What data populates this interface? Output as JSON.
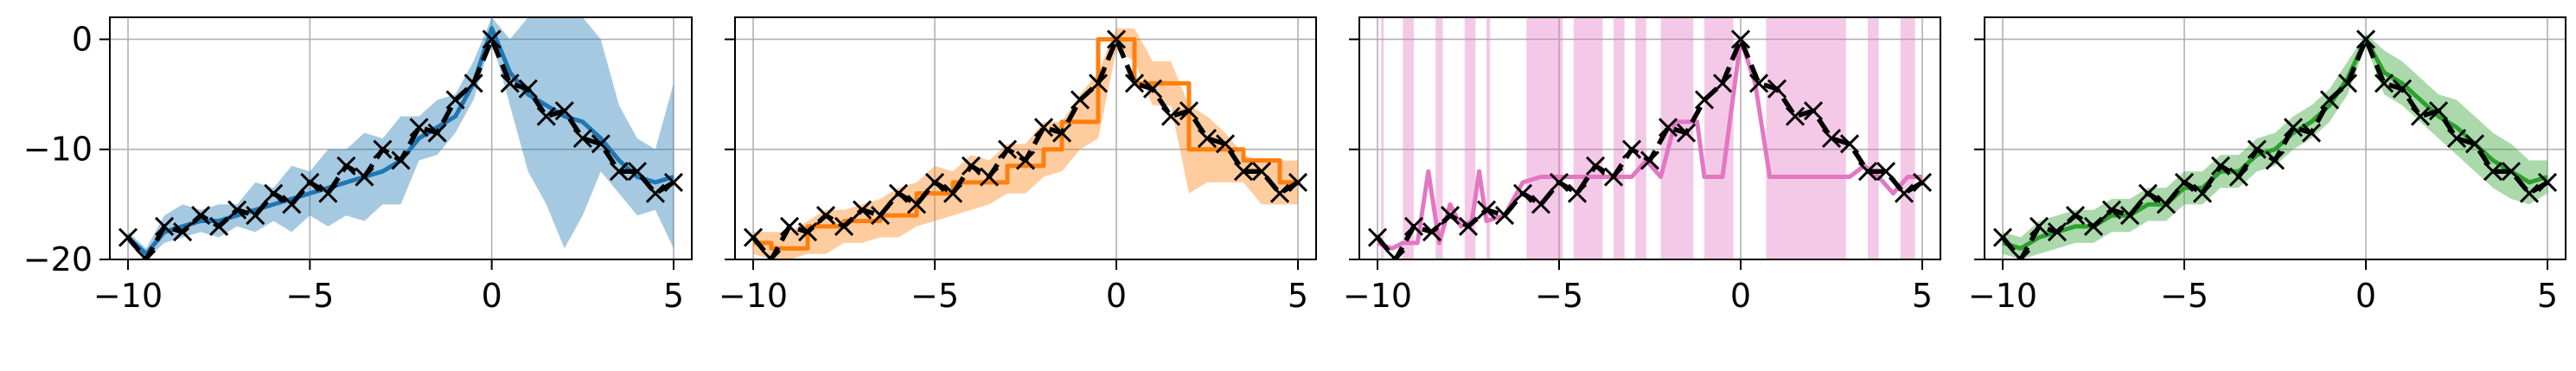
{
  "chart_data": [
    {
      "type": "line",
      "panel": 1,
      "xlim": [
        -10.5,
        5.5
      ],
      "ylim": [
        -20,
        2
      ],
      "xticks": [
        -10,
        -5,
        0,
        5
      ],
      "xtick_labels": [
        "−10",
        "−5",
        "0",
        "5"
      ],
      "yticks": [
        0,
        -10,
        -20
      ],
      "ytick_labels": [
        "0",
        "−10",
        "−20"
      ],
      "grid": true,
      "color": "#1f77b4",
      "band_color": "#1f77b4",
      "observations": {
        "x": [
          -10,
          -9.5,
          -9,
          -8.5,
          -8,
          -7.5,
          -7,
          -6.5,
          -6,
          -5.5,
          -5,
          -4.5,
          -4,
          -3.5,
          -3,
          -2.5,
          -2,
          -1.5,
          -1,
          -0.5,
          0,
          0.5,
          1,
          1.5,
          2,
          2.5,
          3,
          3.5,
          4,
          4.5,
          5
        ]
      },
      "truth": {
        "x": [
          -10,
          -9.5,
          -9,
          -8.5,
          -8,
          -7.5,
          -7,
          -6.5,
          -6,
          -5.5,
          -5,
          -4.5,
          -4,
          -3.5,
          -3,
          -2.5,
          -2,
          -1.5,
          -1,
          -0.5,
          0,
          0.5,
          1,
          1.5,
          2,
          2.5,
          3,
          3.5,
          4,
          4.5,
          5
        ],
        "y": [
          -18,
          -20,
          -17,
          -17.5,
          -16,
          -17,
          -15.5,
          -16,
          -14,
          -15,
          -13,
          -14,
          -11.5,
          -12.5,
          -10,
          -11,
          -8,
          -8.5,
          -5.5,
          -4,
          0,
          -4,
          -4.5,
          -7,
          -6.5,
          -9,
          -9.5,
          -12,
          -12,
          -14,
          -13
        ]
      },
      "mean": {
        "x": [
          -10,
          -9.5,
          -9,
          -8.5,
          -8,
          -7.5,
          -7,
          -6.5,
          -6,
          -5.5,
          -5,
          -4.5,
          -4,
          -3.5,
          -3,
          -2.5,
          -2,
          -1.5,
          -1,
          -0.5,
          0,
          0.5,
          1,
          1.5,
          2,
          2.5,
          3,
          3.5,
          4,
          4.5,
          5
        ],
        "y": [
          -18,
          -19.5,
          -17.5,
          -17,
          -16.5,
          -16.5,
          -16,
          -15.5,
          -15,
          -14.5,
          -14,
          -13.5,
          -13,
          -12.5,
          -12,
          -11,
          -9,
          -8,
          -7,
          -4,
          1,
          -3,
          -5,
          -6,
          -7,
          -7.5,
          -9,
          -11,
          -12.5,
          -13,
          -12.5
        ]
      },
      "band": {
        "x": [
          -10,
          -9.5,
          -9,
          -8.5,
          -8,
          -7.5,
          -7,
          -6.5,
          -6,
          -5.5,
          -5,
          -4.5,
          -4,
          -3.5,
          -3,
          -2.5,
          -2,
          -1.5,
          -1,
          -0.5,
          0,
          0.5,
          1,
          1.5,
          2,
          2.5,
          3,
          3.5,
          4,
          4.5,
          5
        ],
        "lower": [
          -18.5,
          -20,
          -18.5,
          -18,
          -17.5,
          -18,
          -17,
          -17.5,
          -16.5,
          -17.5,
          -16,
          -17,
          -16,
          -16.5,
          -15,
          -15,
          -11,
          -10.5,
          -8.5,
          -5.5,
          0,
          -6,
          -12,
          -15,
          -19,
          -16,
          -12,
          -14,
          -16,
          -15.5,
          -19
        ],
        "upper": [
          -17.5,
          -19,
          -16,
          -15,
          -15.5,
          -15,
          -15,
          -13,
          -13.5,
          -11.5,
          -12,
          -10,
          -10,
          -8.5,
          -9,
          -7,
          -7,
          -5.5,
          -5,
          -2,
          2,
          0,
          2,
          2,
          4,
          2,
          0,
          -6,
          -9,
          -10,
          -4
        ]
      }
    },
    {
      "type": "line",
      "panel": 2,
      "xlim": [
        -10.5,
        5.5
      ],
      "ylim": [
        -20,
        2
      ],
      "xticks": [
        -10,
        -5,
        0,
        5
      ],
      "xtick_labels": [
        "−10",
        "−5",
        "0",
        "5"
      ],
      "yticks": [
        0,
        -10,
        -20
      ],
      "grid": true,
      "color": "#ff7f0e",
      "band_color": "#ff7f0e",
      "observations": {
        "x": [
          -10,
          -9.5,
          -9,
          -8.5,
          -8,
          -7.5,
          -7,
          -6.5,
          -6,
          -5.5,
          -5,
          -4.5,
          -4,
          -3.5,
          -3,
          -2.5,
          -2,
          -1.5,
          -1,
          -0.5,
          0,
          0.5,
          1,
          1.5,
          2,
          2.5,
          3,
          3.5,
          4,
          4.5,
          5
        ]
      },
      "truth": {
        "x": [
          -10,
          -9.5,
          -9,
          -8.5,
          -8,
          -7.5,
          -7,
          -6.5,
          -6,
          -5.5,
          -5,
          -4.5,
          -4,
          -3.5,
          -3,
          -2.5,
          -2,
          -1.5,
          -1,
          -0.5,
          0,
          0.5,
          1,
          1.5,
          2,
          2.5,
          3,
          3.5,
          4,
          4.5,
          5
        ],
        "y": [
          -18,
          -20,
          -17,
          -17.5,
          -16,
          -17,
          -15.5,
          -16,
          -14,
          -15,
          -13,
          -14,
          -11.5,
          -12.5,
          -10,
          -11,
          -8,
          -8.5,
          -5.5,
          -4,
          0,
          -4,
          -4.5,
          -7,
          -6.5,
          -9,
          -9.5,
          -12,
          -12,
          -14,
          -13
        ]
      },
      "mean": {
        "x": [
          -10,
          -9.5,
          -9.5,
          -8.5,
          -8.5,
          -7.5,
          -7.5,
          -6.5,
          -6.5,
          -5.5,
          -5.5,
          -4.5,
          -4.5,
          -3,
          -3,
          -2,
          -2,
          -1.5,
          -1.5,
          -0.5,
          -0.5,
          0.5,
          0.5,
          2,
          2,
          3.5,
          3.5,
          4.5,
          4.5,
          5
        ],
        "y": [
          -18.5,
          -18.5,
          -19,
          -19,
          -17,
          -17,
          -16.5,
          -16.5,
          -16,
          -16,
          -14,
          -14,
          -13,
          -13,
          -11.5,
          -11.5,
          -10,
          -10,
          -7.5,
          -7.5,
          0,
          0,
          -4,
          -4,
          -10,
          -10,
          -11,
          -11,
          -13,
          -13
        ]
      },
      "band": {
        "x": [
          -10,
          -9.5,
          -9,
          -8.5,
          -8,
          -7.5,
          -7,
          -6.5,
          -6,
          -5.5,
          -5,
          -4.5,
          -4,
          -3.5,
          -3,
          -2.5,
          -2,
          -1.5,
          -1,
          -0.5,
          0,
          0.5,
          1,
          1.5,
          2,
          2.5,
          3,
          3.5,
          4,
          4.5,
          5
        ],
        "lower": [
          -19.5,
          -20,
          -20,
          -19.5,
          -19.5,
          -18.5,
          -18.5,
          -18,
          -18,
          -17,
          -16.5,
          -16,
          -15.5,
          -15,
          -14,
          -14,
          -12.5,
          -12,
          -10,
          -9,
          -1,
          -2,
          -6,
          -6,
          -14,
          -13,
          -13,
          -13,
          -15,
          -15,
          -15
        ],
        "upper": [
          -17.5,
          -17.5,
          -17.5,
          -16.5,
          -15.5,
          -15.5,
          -15,
          -14.5,
          -13.5,
          -13,
          -11.5,
          -12,
          -10.5,
          -11,
          -9.5,
          -9.5,
          -7.5,
          -7.5,
          -5,
          -3,
          1,
          1,
          -2,
          -2,
          -6,
          -7,
          -8.5,
          -10.5,
          -11,
          -11,
          -11
        ]
      }
    },
    {
      "type": "line",
      "panel": 3,
      "xlim": [
        -10.5,
        5.5
      ],
      "ylim": [
        -20,
        2
      ],
      "xticks": [
        -10,
        -5,
        0,
        5
      ],
      "xtick_labels": [
        "−10",
        "−5",
        "0",
        "5"
      ],
      "yticks": [
        0,
        -10,
        -20
      ],
      "grid": true,
      "color": "#e377c2",
      "band_color": "#e377c2",
      "observations": {
        "x": [
          -10,
          -9.5,
          -9,
          -8.5,
          -8,
          -7.5,
          -7,
          -6.5,
          -6,
          -5.5,
          -5,
          -4.5,
          -4,
          -3.5,
          -3,
          -2.5,
          -2,
          -1.5,
          -1,
          -0.5,
          0,
          0.5,
          1,
          1.5,
          2,
          2.5,
          3,
          3.5,
          4,
          4.5,
          5
        ]
      },
      "truth": {
        "x": [
          -10,
          -9.5,
          -9,
          -8.5,
          -8,
          -7.5,
          -7,
          -6.5,
          -6,
          -5.5,
          -5,
          -4.5,
          -4,
          -3.5,
          -3,
          -2.5,
          -2,
          -1.5,
          -1,
          -0.5,
          0,
          0.5,
          1,
          1.5,
          2,
          2.5,
          3,
          3.5,
          4,
          4.5,
          5
        ],
        "y": [
          -18,
          -20,
          -17,
          -17.5,
          -16,
          -17,
          -15.5,
          -16,
          -14,
          -15,
          -13,
          -14,
          -11.5,
          -12.5,
          -10,
          -11,
          -8,
          -8.5,
          -5.5,
          -4,
          0,
          -4,
          -4.5,
          -7,
          -6.5,
          -9,
          -9.5,
          -12,
          -12,
          -14,
          -13
        ]
      },
      "mean": {
        "x": [
          -10,
          -9.6,
          -9.3,
          -9.1,
          -8.9,
          -8.6,
          -8.3,
          -8.0,
          -7.7,
          -7.4,
          -7.2,
          -7.0,
          -6.5,
          -6.0,
          -5.5,
          -5.0,
          -4.5,
          -4.0,
          -3.5,
          -3.0,
          -2.6,
          -2.2,
          -2.0,
          -1.8,
          -1.5,
          -1.2,
          -1.0,
          -0.5,
          0,
          0.4,
          0.8,
          1.2,
          2.0,
          3.0,
          3.4,
          3.8,
          4.2,
          4.6,
          5
        ],
        "y": [
          -18.5,
          -19,
          -18.5,
          -18.5,
          -18.5,
          -12,
          -18.5,
          -15,
          -17,
          -16.5,
          -12,
          -16.5,
          -16,
          -13,
          -12.5,
          -12.5,
          -12.5,
          -12.5,
          -12.5,
          -12.5,
          -11,
          -12.5,
          -10,
          -7.5,
          -7.5,
          -7.5,
          -12.5,
          -12.5,
          0,
          -4,
          -12.5,
          -12.5,
          -12.5,
          -12.5,
          -11.5,
          -12.5,
          -14,
          -12.5,
          -12.5
        ]
      },
      "band_intervals": [
        [
          -9.9,
          -9.85
        ],
        [
          -9.3,
          -9.0
        ],
        [
          -8.4,
          -8.2
        ],
        [
          -7.6,
          -7.3
        ],
        [
          -7.0,
          -6.9
        ],
        [
          -5.9,
          -4.9
        ],
        [
          -4.6,
          -3.8
        ],
        [
          -3.5,
          -3.2
        ],
        [
          -2.9,
          -2.6
        ],
        [
          -2.2,
          -1.3
        ],
        [
          -1.0,
          -0.2
        ],
        [
          0.7,
          2.9
        ],
        [
          3.5,
          3.8
        ],
        [
          4.4,
          4.8
        ]
      ]
    },
    {
      "type": "line",
      "panel": 4,
      "xlim": [
        -10.5,
        5.5
      ],
      "ylim": [
        -20,
        2
      ],
      "xticks": [
        -10,
        -5,
        0,
        5
      ],
      "xtick_labels": [
        "−10",
        "−5",
        "0",
        "5"
      ],
      "yticks": [
        0,
        -10,
        -20
      ],
      "grid": true,
      "color": "#2ca02c",
      "band_color": "#2ca02c",
      "observations": {
        "x": [
          -10,
          -9.5,
          -9,
          -8.5,
          -8,
          -7.5,
          -7,
          -6.5,
          -6,
          -5.5,
          -5,
          -4.5,
          -4,
          -3.5,
          -3,
          -2.5,
          -2,
          -1.5,
          -1,
          -0.5,
          0,
          0.5,
          1,
          1.5,
          2,
          2.5,
          3,
          3.5,
          4,
          4.5,
          5
        ]
      },
      "truth": {
        "x": [
          -10,
          -9.5,
          -9,
          -8.5,
          -8,
          -7.5,
          -7,
          -6.5,
          -6,
          -5.5,
          -5,
          -4.5,
          -4,
          -3.5,
          -3,
          -2.5,
          -2,
          -1.5,
          -1,
          -0.5,
          0,
          0.5,
          1,
          1.5,
          2,
          2.5,
          3,
          3.5,
          4,
          4.5,
          5
        ],
        "y": [
          -18,
          -20,
          -17,
          -17.5,
          -16,
          -17,
          -15.5,
          -16,
          -14,
          -15,
          -13,
          -14,
          -11.5,
          -12.5,
          -10,
          -11,
          -8,
          -8.5,
          -5.5,
          -4,
          0,
          -4,
          -4.5,
          -7,
          -6.5,
          -9,
          -9.5,
          -12,
          -12,
          -14,
          -13
        ]
      },
      "mean": {
        "x": [
          -10,
          -9.5,
          -9,
          -8.5,
          -8,
          -7.5,
          -7,
          -6.5,
          -6,
          -5.5,
          -5,
          -4.5,
          -4,
          -3.5,
          -3,
          -2.5,
          -2,
          -1.5,
          -1,
          -0.5,
          0,
          0.5,
          1,
          1.5,
          2,
          2.5,
          3,
          3.5,
          4,
          4.5,
          5
        ],
        "y": [
          -18.5,
          -19,
          -18,
          -17.5,
          -17,
          -17,
          -16,
          -16,
          -15,
          -15,
          -13.5,
          -13.5,
          -12,
          -12,
          -10.5,
          -10,
          -8.5,
          -7.5,
          -6,
          -3.5,
          0,
          -3,
          -4,
          -5.5,
          -7,
          -8,
          -9.5,
          -11,
          -12,
          -13,
          -12.5
        ]
      },
      "band": {
        "x": [
          -10,
          -9.5,
          -9,
          -8.5,
          -8,
          -7.5,
          -7,
          -6.5,
          -6,
          -5.5,
          -5,
          -4.5,
          -4,
          -3.5,
          -3,
          -2.5,
          -2,
          -1.5,
          -1,
          -0.5,
          0,
          0.5,
          1,
          1.5,
          2,
          2.5,
          3,
          3.5,
          4,
          4.5,
          5
        ],
        "lower": [
          -19.5,
          -20,
          -19.5,
          -19,
          -18.5,
          -18.5,
          -17.5,
          -17.5,
          -16.5,
          -16.5,
          -15,
          -15,
          -13.5,
          -13.5,
          -12,
          -11.5,
          -10,
          -9,
          -7.5,
          -5,
          -0.5,
          -5,
          -6,
          -7.5,
          -9,
          -10.5,
          -12,
          -13.5,
          -14.5,
          -15,
          -14
        ]
      },
      "band_upper_offset": 3
    }
  ]
}
